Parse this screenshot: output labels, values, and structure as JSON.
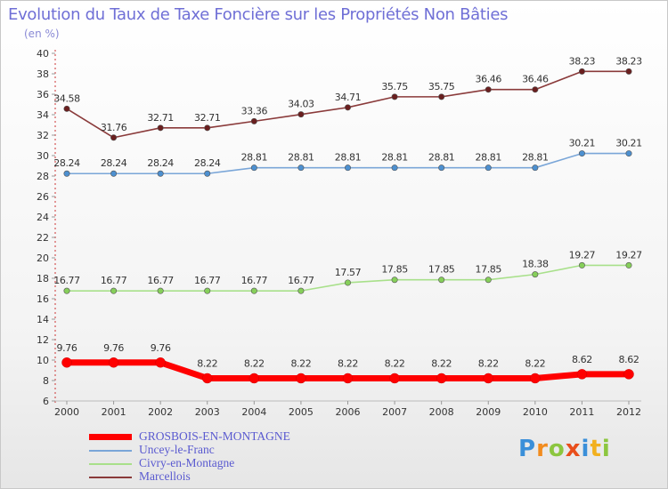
{
  "title": "Evolution du Taux de Taxe Foncière sur les Propriétés Non Bâties",
  "subtitle": "(en %)",
  "chart_data": {
    "type": "line",
    "title": "Evolution du Taux de Taxe Foncière sur les Propriétés Non Bâties",
    "ylabel": "(en %)",
    "xlabel": "",
    "ylim": [
      6,
      40
    ],
    "y_ticks": [
      6,
      8,
      10,
      12,
      14,
      16,
      18,
      20,
      22,
      24,
      26,
      28,
      30,
      32,
      34,
      36,
      38,
      40
    ],
    "x": [
      "2000",
      "2001",
      "2002",
      "2003",
      "2004",
      "2005",
      "2006",
      "2007",
      "2008",
      "2009",
      "2010",
      "2011",
      "2012"
    ],
    "grid": false,
    "legend_position": "bottom-left",
    "series": [
      {
        "name": "GROSBOIS-EN-MONTAGNE",
        "color": "#ff0000",
        "marker": "#ff0000",
        "emphasis": true,
        "values": [
          9.76,
          9.76,
          9.76,
          8.22,
          8.22,
          8.22,
          8.22,
          8.22,
          8.22,
          8.22,
          8.22,
          8.62,
          8.62
        ],
        "labels": [
          "9.76",
          "9.76",
          "9.76",
          "8.22",
          "8.22",
          "8.22",
          "8.22",
          "8.22",
          "8.22",
          "8.22",
          "8.22",
          "8.62",
          "8.62"
        ]
      },
      {
        "name": "Uncey-le-Franc",
        "color": "#7aa6d8",
        "marker": "#4d90d0",
        "values": [
          28.24,
          28.24,
          28.24,
          28.24,
          28.81,
          28.81,
          28.81,
          28.81,
          28.81,
          28.81,
          28.81,
          30.21,
          30.21
        ],
        "labels": [
          "28.24",
          "28.24",
          "28.24",
          "28.24",
          "28.81",
          "28.81",
          "28.81",
          "28.81",
          "28.81",
          "28.81",
          "28.81",
          "30.21",
          "30.21"
        ]
      },
      {
        "name": "Civry-en-Montagne",
        "color": "#a8e08a",
        "marker": "#86cf5a",
        "values": [
          16.77,
          16.77,
          16.77,
          16.77,
          16.77,
          16.77,
          17.57,
          17.85,
          17.85,
          17.85,
          18.38,
          19.27,
          19.27
        ],
        "labels": [
          "16.77",
          "16.77",
          "16.77",
          "16.77",
          "16.77",
          "16.77",
          "17.57",
          "17.85",
          "17.85",
          "17.85",
          "18.38",
          "19.27",
          "19.27"
        ]
      },
      {
        "name": "Marcellois",
        "color": "#8a3a3a",
        "marker": "#6a1f1f",
        "values": [
          34.58,
          31.76,
          32.71,
          32.71,
          33.36,
          34.03,
          34.71,
          35.75,
          35.75,
          36.46,
          36.46,
          38.23,
          38.23
        ],
        "labels": [
          "34.58",
          "31.76",
          "32.71",
          "32.71",
          "33.36",
          "34.03",
          "34.71",
          "35.75",
          "35.75",
          "36.46",
          "36.46",
          "38.23",
          "38.23"
        ]
      }
    ]
  },
  "logo": {
    "letters": [
      {
        "ch": "P",
        "color": "#3a8fd9"
      },
      {
        "ch": "r",
        "color": "#f28c1e"
      },
      {
        "ch": "o",
        "color": "#8cc63f"
      },
      {
        "ch": "x",
        "color": "#e94e1b"
      },
      {
        "ch": "i",
        "color": "#3a8fd9"
      },
      {
        "ch": "t",
        "color": "#f2b01e"
      },
      {
        "ch": "i",
        "color": "#8cc63f"
      }
    ]
  }
}
